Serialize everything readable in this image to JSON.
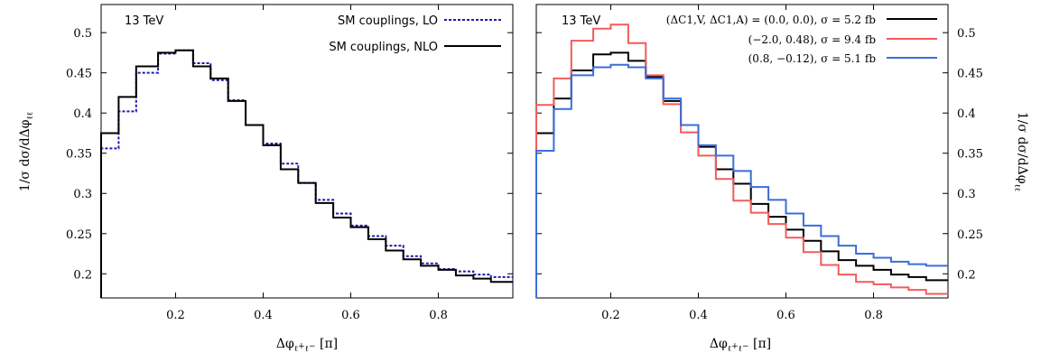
{
  "chart_data": [
    {
      "type": "line",
      "step": true,
      "energy_label": "13 TeV",
      "xlabel": "Δφ_{ℓz+ℓz−} [π]",
      "ylabel": "1/σ dσ/dΔφ_{ℓz+ℓz−}",
      "xlim": [
        0.03,
        0.97
      ],
      "ylim": [
        0.17,
        0.535
      ],
      "xticks": [
        0.2,
        0.4,
        0.6,
        0.8
      ],
      "yticks": [
        0.2,
        0.25,
        0.3,
        0.35,
        0.4,
        0.45,
        0.5
      ],
      "ytick_labels": [
        "0.2",
        "0.25",
        "0.3",
        "0.35",
        "0.4",
        "0.45",
        "0.5"
      ],
      "xtick_labels": [
        "0.2",
        "0.4",
        "0.6",
        "0.8"
      ],
      "legend_position": "top-right",
      "bin_edges": [
        0.03,
        0.07,
        0.11,
        0.16,
        0.2,
        0.24,
        0.28,
        0.32,
        0.36,
        0.4,
        0.44,
        0.48,
        0.52,
        0.56,
        0.6,
        0.64,
        0.68,
        0.72,
        0.76,
        0.8,
        0.84,
        0.88,
        0.92,
        0.97
      ],
      "series": [
        {
          "name": "SM couplings, LO",
          "color": "#1c1cb0",
          "dashed": true,
          "values": [
            0.356,
            0.402,
            0.45,
            0.474,
            0.478,
            0.462,
            0.441,
            0.416,
            0.385,
            0.362,
            0.337,
            0.313,
            0.292,
            0.275,
            0.26,
            0.247,
            0.235,
            0.222,
            0.213,
            0.206,
            0.203,
            0.199,
            0.196
          ]
        },
        {
          "name": "SM couplings, NLO",
          "color": "#000000",
          "dashed": false,
          "values": [
            0.375,
            0.42,
            0.458,
            0.475,
            0.478,
            0.458,
            0.443,
            0.415,
            0.385,
            0.36,
            0.33,
            0.313,
            0.288,
            0.27,
            0.258,
            0.243,
            0.229,
            0.218,
            0.21,
            0.205,
            0.198,
            0.194,
            0.19
          ]
        }
      ]
    },
    {
      "type": "line",
      "step": true,
      "energy_label": "13 TeV",
      "xlabel": "Δφ_{ℓz+ℓz−} [π]",
      "ylabel": "1/σ dσ/dΔφ_{ℓz+ℓz−}",
      "xlim": [
        0.03,
        0.97
      ],
      "ylim": [
        0.17,
        0.535
      ],
      "xticks": [
        0.2,
        0.4,
        0.6,
        0.8
      ],
      "yticks": [
        0.2,
        0.25,
        0.3,
        0.35,
        0.4,
        0.45,
        0.5
      ],
      "ytick_labels": [
        "0.2",
        "0.25",
        "0.3",
        "0.35",
        "0.4",
        "0.45",
        "0.5"
      ],
      "xtick_labels": [
        "0.2",
        "0.4",
        "0.6",
        "0.8"
      ],
      "legend_position": "top-right",
      "bin_edges": [
        0.03,
        0.07,
        0.11,
        0.16,
        0.2,
        0.24,
        0.28,
        0.32,
        0.36,
        0.4,
        0.44,
        0.48,
        0.52,
        0.56,
        0.6,
        0.64,
        0.68,
        0.72,
        0.76,
        0.8,
        0.84,
        0.88,
        0.92,
        0.97
      ],
      "series": [
        {
          "name": "(ΔC1,V, ΔC1,A) = (0.0, 0.0), σ = 5.2 fb",
          "color": "#000000",
          "dashed": false,
          "values": [
            0.375,
            0.418,
            0.453,
            0.473,
            0.475,
            0.465,
            0.445,
            0.415,
            0.385,
            0.358,
            0.33,
            0.312,
            0.287,
            0.271,
            0.255,
            0.241,
            0.228,
            0.217,
            0.21,
            0.205,
            0.199,
            0.196,
            0.192
          ]
        },
        {
          "name": "(−2.0, 0.48), σ = 9.4 fb",
          "color": "#f25c5c",
          "dashed": false,
          "values": [
            0.41,
            0.443,
            0.49,
            0.505,
            0.51,
            0.487,
            0.447,
            0.411,
            0.376,
            0.347,
            0.318,
            0.291,
            0.276,
            0.262,
            0.245,
            0.227,
            0.211,
            0.199,
            0.19,
            0.187,
            0.183,
            0.18,
            0.175
          ]
        },
        {
          "name": "(0.8, −0.12), σ = 5.1 fb",
          "color": "#3b6ddb",
          "dashed": false,
          "values": [
            0.353,
            0.405,
            0.447,
            0.457,
            0.46,
            0.457,
            0.443,
            0.418,
            0.385,
            0.36,
            0.347,
            0.328,
            0.308,
            0.292,
            0.275,
            0.26,
            0.247,
            0.235,
            0.225,
            0.22,
            0.215,
            0.212,
            0.21
          ]
        }
      ]
    }
  ]
}
